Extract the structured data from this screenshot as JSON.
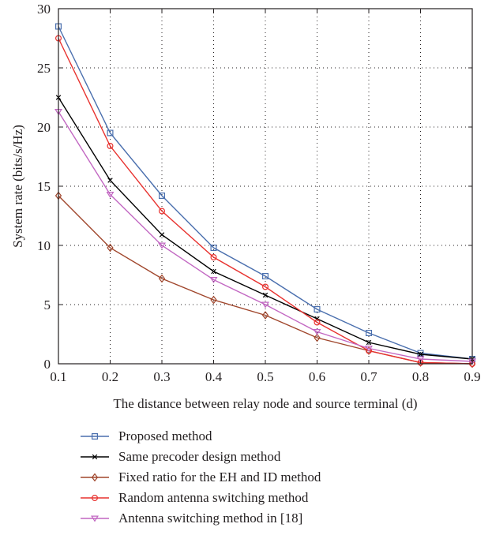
{
  "chart_data": {
    "type": "line",
    "xlabel": "The distance between relay node and source terminal (d)",
    "ylabel": "System rate (bits/s/Hz)",
    "xlim": [
      0.1,
      0.9
    ],
    "ylim": [
      0,
      30
    ],
    "x_ticks": [
      "0.1",
      "0.2",
      "0.3",
      "0.4",
      "0.5",
      "0.6",
      "0.7",
      "0.8",
      "0.9"
    ],
    "y_ticks": [
      "0",
      "5",
      "10",
      "15",
      "20",
      "25",
      "30"
    ],
    "grid": true,
    "legend_position": "below",
    "x": [
      0.1,
      0.2,
      0.3,
      0.4,
      0.5,
      0.6,
      0.7,
      0.8,
      0.9
    ],
    "series": [
      {
        "name": "Proposed method",
        "color": "#4a6fae",
        "marker": "square",
        "values": [
          28.5,
          19.5,
          14.2,
          9.8,
          7.4,
          4.6,
          2.6,
          0.9,
          0.4
        ]
      },
      {
        "name": "Same precoder design method",
        "color": "#000000",
        "marker": "x",
        "values": [
          22.5,
          15.5,
          10.9,
          7.8,
          5.8,
          3.8,
          1.8,
          0.8,
          0.4
        ]
      },
      {
        "name": "Fixed ratio for the EH and ID method",
        "color": "#a0462c",
        "marker": "diamond",
        "values": [
          14.2,
          9.8,
          7.2,
          5.4,
          4.1,
          2.2,
          1.1,
          0.1,
          0.0
        ]
      },
      {
        "name": "Random antenna switching method",
        "color": "#e8322f",
        "marker": "circle",
        "values": [
          27.5,
          18.4,
          12.9,
          9.0,
          6.5,
          3.5,
          1.1,
          0.1,
          0.0
        ]
      },
      {
        "name": "Antenna switching method in [18]",
        "color": "#c267c2",
        "marker": "triangle-down",
        "values": [
          21.3,
          14.3,
          10.0,
          7.1,
          5.0,
          2.7,
          1.3,
          0.4,
          0.2
        ]
      }
    ]
  }
}
